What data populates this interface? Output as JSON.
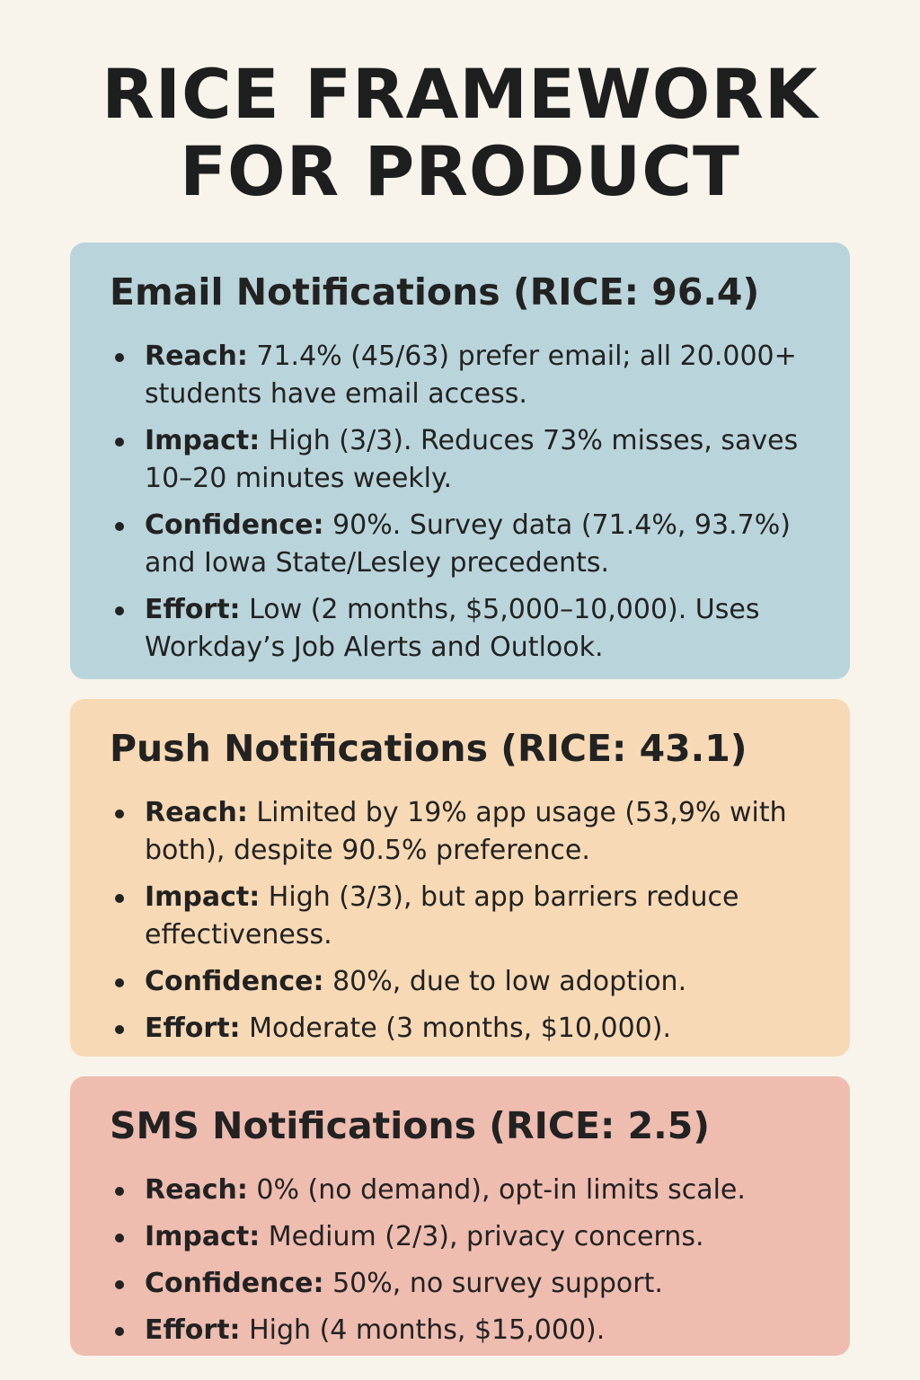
{
  "title": {
    "line1": "RICE FRAMEWORK",
    "line2": "FOR PRODUCT"
  },
  "cards": [
    {
      "heading": "Email Notifications (RICE: 96.4)",
      "color": "#bad4db",
      "items": [
        {
          "label": "Reach:",
          "text": " 71.4% (45/63) prefer email; all 20.000+ students have email access."
        },
        {
          "label": "Impact:",
          "text": " High (3/3). Reduces 73% misses, saves 10–20 minutes weekly."
        },
        {
          "label": "Confidence:",
          "text": " 90%. Survey data (71.4%, 93.7%) and Iowa State/Lesley precedents."
        },
        {
          "label": "Effort:",
          "text": " Low (2 months, $5,000–10,000). Uses Workday’s Job Alerts and Outlook."
        }
      ]
    },
    {
      "heading": "Push Notifications (RICE: 43.1)",
      "color": "#f7d9b5",
      "items": [
        {
          "label": "Reach:",
          "text": " Limited by 19% app usage (53,9% with both), despite 90.5% preference."
        },
        {
          "label": "Impact:",
          "text": " High (3/3), but app barriers reduce effectiveness."
        },
        {
          "label": "Confidence:",
          "text": " 80%, due to low adoption."
        },
        {
          "label": "Effort:",
          "text": " Moderate (3 months, $10,000)."
        }
      ]
    },
    {
      "heading": "SMS Notifications (RICE: 2.5)",
      "color": "#efbcb0",
      "items": [
        {
          "label": "Reach:",
          "text": " 0% (no demand), opt-in limits scale."
        },
        {
          "label": "Impact:",
          "text": " Medium (2/3), privacy concerns."
        },
        {
          "label": "Confidence:",
          "text": " 50%, no survey support."
        },
        {
          "label": "Effort:",
          "text": " High (4 months, $15,000)."
        }
      ]
    }
  ]
}
